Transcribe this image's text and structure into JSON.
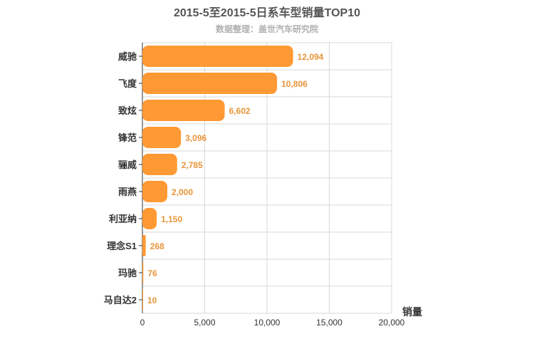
{
  "chart_data": {
    "type": "bar",
    "orientation": "horizontal",
    "title": "2015-5至2015-5日系车型销量TOP10",
    "subtitle": "数据整理：盖世汽车研究院",
    "categories": [
      "威驰",
      "飞度",
      "致炫",
      "锋范",
      "骊威",
      "雨燕",
      "利亚纳",
      "理念S1",
      "玛驰",
      "马自达2"
    ],
    "values": [
      12094,
      10806,
      6602,
      3096,
      2785,
      2000,
      1150,
      268,
      76,
      10
    ],
    "value_labels": [
      "12,094",
      "10,806",
      "6,602",
      "3,096",
      "2,785",
      "2,000",
      "1,150",
      "268",
      "76",
      "10"
    ],
    "xlabel": "销量",
    "ylabel": "",
    "xlim": [
      0,
      20000
    ],
    "x_ticks": [
      0,
      5000,
      10000,
      15000,
      20000
    ],
    "x_tick_labels": [
      "0",
      "5,000",
      "10,000",
      "15,000",
      "20,000"
    ],
    "grid": true,
    "legend": "none",
    "colors": {
      "bar": "#FF9933",
      "value_label": "#E8953A",
      "grid": "#D8D8D8",
      "axis": "#333333"
    }
  }
}
